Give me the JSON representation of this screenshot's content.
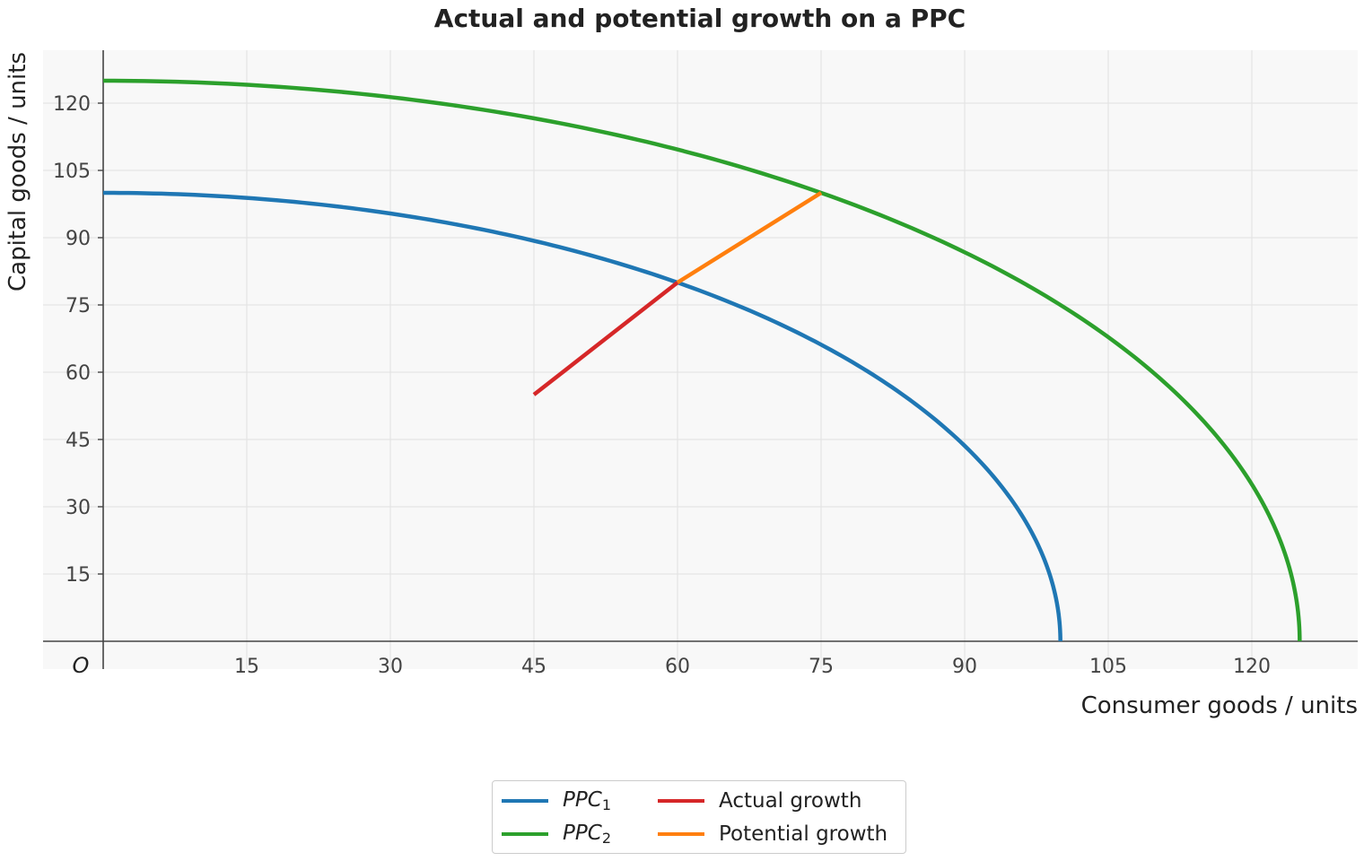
{
  "chart_data": {
    "type": "line",
    "title": "Actual and potential growth on a PPC",
    "xlabel": "Consumer goods / units",
    "ylabel": "Capital goods / units",
    "origin_label": "O",
    "xlim": [
      -12.5,
      262.5
    ],
    "ylim": [
      -6,
      131
    ],
    "x_ticks": [
      15,
      30,
      45,
      60,
      75,
      90,
      105,
      120
    ],
    "y_ticks": [
      15,
      30,
      45,
      60,
      75,
      90,
      105,
      120
    ],
    "grid": true,
    "legend_position": "bottom-center",
    "series": [
      {
        "name": "PPC1",
        "label_base": "PPC",
        "label_sub": "1",
        "kind": "quarter-ellipse",
        "x_intercept": 100,
        "y_intercept": 100,
        "color": "#1f77b4"
      },
      {
        "name": "PPC2",
        "label_base": "PPC",
        "label_sub": "2",
        "kind": "quarter-ellipse",
        "x_intercept": 125,
        "y_intercept": 125,
        "color": "#2ca02c"
      },
      {
        "name": "Actual growth",
        "kind": "segment",
        "points": [
          [
            45,
            55
          ],
          [
            60,
            80
          ]
        ],
        "color": "#d62728"
      },
      {
        "name": "Potential growth",
        "kind": "segment",
        "points": [
          [
            60,
            80
          ],
          [
            75,
            100
          ]
        ],
        "color": "#ff7f0e"
      }
    ]
  }
}
